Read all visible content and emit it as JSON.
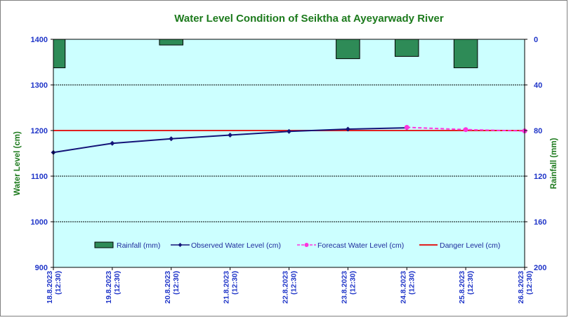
{
  "chart_data": {
    "type": "line",
    "title": "Water Level Condition  of Seiktha at Ayeyarwady  River",
    "ylabel": "Water Level (cm)",
    "y2label": "Rainfall (mm)",
    "ylim": [
      900,
      1400
    ],
    "yticks": [
      900,
      1000,
      1100,
      1200,
      1300,
      1400
    ],
    "y2lim": [
      0,
      200
    ],
    "y2ticks": [
      0,
      40,
      80,
      120,
      160,
      200
    ],
    "y2_inverted": true,
    "categories": [
      [
        "18.8.2023",
        "(12:30)"
      ],
      [
        "19.8.2023",
        "(12:30)"
      ],
      [
        "20.8.2023",
        "(12:30)"
      ],
      [
        "21.8.2023",
        "(12:30)"
      ],
      [
        "22.8.2023",
        "(12:30)"
      ],
      [
        "23.8.2023",
        "(12:30)"
      ],
      [
        "24.8.2023",
        "(12:30)"
      ],
      [
        "25.8.2023",
        "(12:30)"
      ],
      [
        "26.8.2023",
        "(12:30)"
      ]
    ],
    "rainfall": {
      "name": "Rainfall (mm)",
      "color": "#2e8b57",
      "values": [
        25,
        null,
        5,
        null,
        null,
        17,
        15,
        25,
        null
      ]
    },
    "observed": {
      "name": "Observed Water Level (cm)",
      "color": "#141478",
      "values": [
        1152,
        1172,
        1182,
        1190,
        1198,
        1203,
        1206,
        null,
        null
      ]
    },
    "forecast": {
      "name": "Forecast Water Level (cm)",
      "color": "#ff33dd",
      "values": [
        null,
        null,
        null,
        null,
        null,
        null,
        1207,
        1202,
        1199
      ]
    },
    "danger": {
      "name": "Danger Level (cm)",
      "color": "#e02020",
      "value": 1200
    },
    "colors": {
      "plot_bg": "#ccffff",
      "grid": "#000000",
      "axis_text": "#1e34c8",
      "title": "#1c7a1c"
    },
    "legend_position": "bottom-center"
  }
}
